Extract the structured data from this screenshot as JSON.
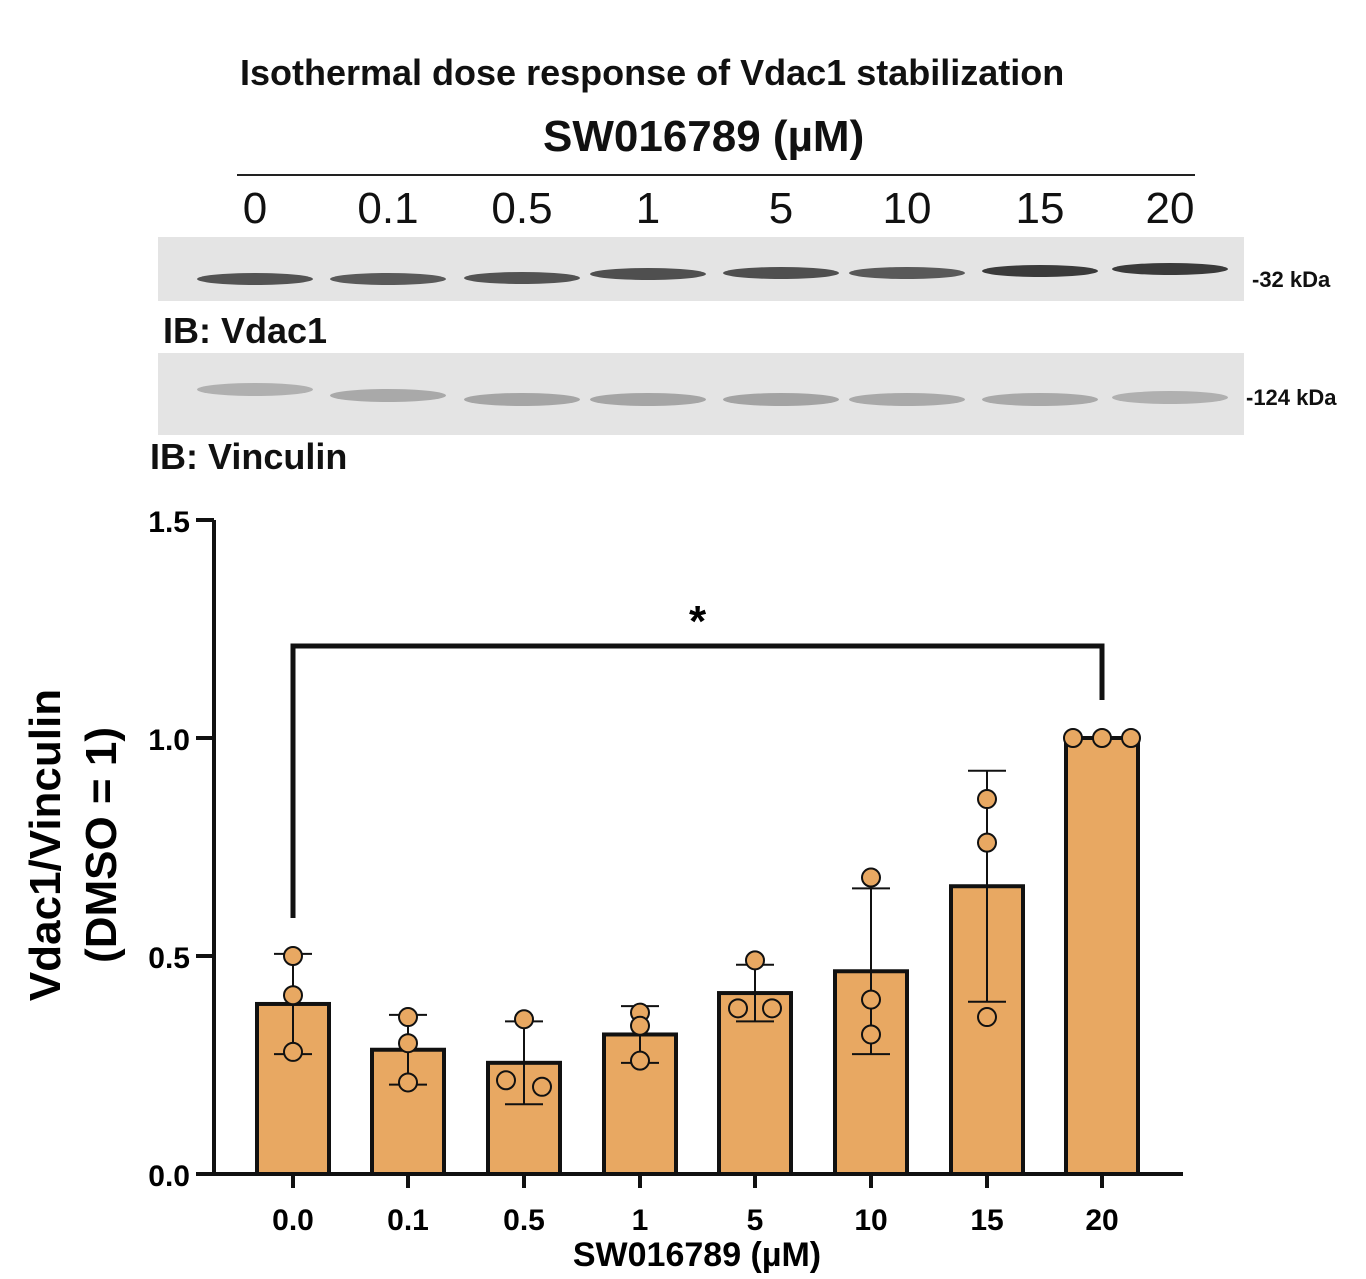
{
  "blot": {
    "title": "Isothermal dose response of Vdac1 stabilization",
    "drug_label": "SW016789 (µM)",
    "lanes": [
      "0",
      "0.1",
      "0.5",
      "1",
      "5",
      "10",
      "15",
      "20"
    ],
    "panels": [
      {
        "ib_label": "IB: Vdac1",
        "mw_label": "-32 kDa",
        "band_color": "#3a3a3a"
      },
      {
        "ib_label": "IB: Vinculin",
        "mw_label": "-124 kDa",
        "band_color": "#9a9a9a"
      }
    ]
  },
  "chart_data": {
    "type": "bar",
    "title": "",
    "xlabel": "SW016789 (µM)",
    "ylabel_line1": "Vdac1/Vinculin",
    "ylabel_line2": "(DMSO = 1)",
    "ylim": [
      0,
      1.5
    ],
    "yticks": [
      "0.0",
      "0.5",
      "1.0",
      "1.5"
    ],
    "categories": [
      "0.0",
      "0.1",
      "0.5",
      "1",
      "5",
      "10",
      "15",
      "20"
    ],
    "values": [
      0.39,
      0.285,
      0.255,
      0.32,
      0.415,
      0.465,
      0.66,
      1.0
    ],
    "errors": [
      0.115,
      0.08,
      0.095,
      0.065,
      0.065,
      0.19,
      0.265,
      0
    ],
    "points": [
      [
        0.5,
        0.41,
        0.28
      ],
      [
        0.36,
        0.3,
        0.21
      ],
      [
        0.355,
        0.215,
        0.2
      ],
      [
        0.37,
        0.34,
        0.26
      ],
      [
        0.49,
        0.38,
        0.38
      ],
      [
        0.68,
        0.4,
        0.32
      ],
      [
        0.86,
        0.76,
        0.36
      ],
      [
        1.0,
        1.0,
        1.0
      ]
    ],
    "significance": {
      "from": "0.0",
      "to": "20",
      "label": "*"
    },
    "bar_color": "#e8a862",
    "grid": false
  }
}
